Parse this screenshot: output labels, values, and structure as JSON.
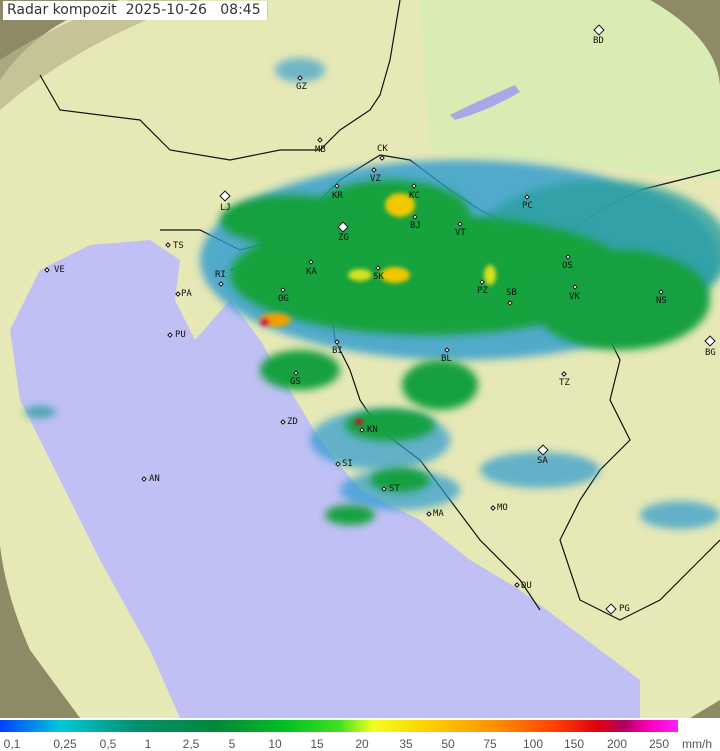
{
  "title": "Radar kompozit  2025-10-26   08:45",
  "colors": {
    "sea": "#c0c0f4",
    "land": "#e8eab8",
    "outside": "#8e8a66",
    "radar_low": "#2a9ad0",
    "radar_mid": "#14a23c",
    "radar_high": "#f0c800",
    "radar_extreme": "#d80030"
  },
  "cities": [
    {
      "code": "BD",
      "big": true
    },
    {
      "code": "GZ"
    },
    {
      "code": "MB"
    },
    {
      "code": "CK"
    },
    {
      "code": "VZ"
    },
    {
      "code": "KR"
    },
    {
      "code": "KC"
    },
    {
      "code": "LJ",
      "big": true
    },
    {
      "code": "ZG",
      "big": true
    },
    {
      "code": "BJ"
    },
    {
      "code": "VT"
    },
    {
      "code": "PC"
    },
    {
      "code": "OS"
    },
    {
      "code": "VK"
    },
    {
      "code": "NS"
    },
    {
      "code": "BG",
      "big": true
    },
    {
      "code": "TS"
    },
    {
      "code": "VE"
    },
    {
      "code": "RI"
    },
    {
      "code": "KA"
    },
    {
      "code": "SK"
    },
    {
      "code": "PZ"
    },
    {
      "code": "SB"
    },
    {
      "code": "PA"
    },
    {
      "code": "OG"
    },
    {
      "code": "PU"
    },
    {
      "code": "BI"
    },
    {
      "code": "BL"
    },
    {
      "code": "TZ"
    },
    {
      "code": "GS"
    },
    {
      "code": "ZD"
    },
    {
      "code": "KN"
    },
    {
      "code": "SA",
      "big": true
    },
    {
      "code": "SI"
    },
    {
      "code": "ST"
    },
    {
      "code": "MA"
    },
    {
      "code": "MO"
    },
    {
      "code": "AN"
    },
    {
      "code": "DU"
    },
    {
      "code": "PG",
      "big": true
    }
  ],
  "legend": {
    "ticks": [
      "0,1",
      "0,25",
      "0,5",
      "1",
      "2,5",
      "5",
      "10",
      "15",
      "20",
      "35",
      "50",
      "75",
      "100",
      "150",
      "200",
      "250"
    ],
    "unit": "mm/h"
  }
}
